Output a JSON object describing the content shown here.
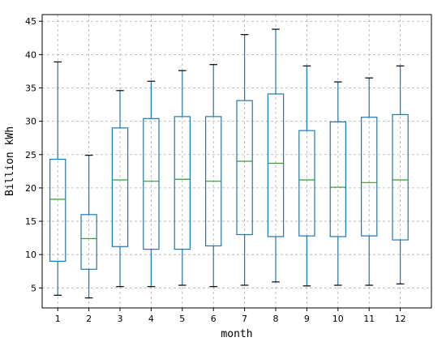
{
  "chart_data": {
    "type": "box",
    "title": "",
    "xlabel": "month",
    "ylabel": "Billion kWh",
    "grid": true,
    "grid_style": "dashed",
    "ylim": [
      2,
      46
    ],
    "yticks": [
      5,
      10,
      15,
      20,
      25,
      30,
      35,
      40,
      45
    ],
    "categories": [
      "1",
      "2",
      "3",
      "4",
      "5",
      "6",
      "7",
      "8",
      "9",
      "10",
      "11",
      "12"
    ],
    "boxes": [
      {
        "whisker_low": 3.9,
        "q1": 9.0,
        "median": 18.3,
        "q3": 24.3,
        "whisker_high": 38.9
      },
      {
        "whisker_low": 3.5,
        "q1": 7.8,
        "median": 12.4,
        "q3": 16.0,
        "whisker_high": 24.9
      },
      {
        "whisker_low": 5.2,
        "q1": 11.2,
        "median": 21.2,
        "q3": 29.0,
        "whisker_high": 34.6
      },
      {
        "whisker_low": 5.2,
        "q1": 10.8,
        "median": 21.0,
        "q3": 30.4,
        "whisker_high": 36.0
      },
      {
        "whisker_low": 5.4,
        "q1": 10.8,
        "median": 21.3,
        "q3": 30.7,
        "whisker_high": 37.6
      },
      {
        "whisker_low": 5.2,
        "q1": 11.3,
        "median": 21.0,
        "q3": 30.7,
        "whisker_high": 38.5
      },
      {
        "whisker_low": 5.4,
        "q1": 13.0,
        "median": 24.0,
        "q3": 33.1,
        "whisker_high": 43.0
      },
      {
        "whisker_low": 5.9,
        "q1": 12.7,
        "median": 23.7,
        "q3": 34.1,
        "whisker_high": 43.8
      },
      {
        "whisker_low": 5.3,
        "q1": 12.8,
        "median": 21.2,
        "q3": 28.6,
        "whisker_high": 38.3
      },
      {
        "whisker_low": 5.4,
        "q1": 12.7,
        "median": 20.1,
        "q3": 29.9,
        "whisker_high": 35.9
      },
      {
        "whisker_low": 5.4,
        "q1": 12.8,
        "median": 20.8,
        "q3": 30.6,
        "whisker_high": 36.5
      },
      {
        "whisker_low": 5.6,
        "q1": 12.2,
        "median": 21.2,
        "q3": 31.0,
        "whisker_high": 38.3
      }
    ],
    "colors": {
      "box": "#1f77b4",
      "median": "#2ca02c",
      "cap": "#000000",
      "grid": "#b0b0b0",
      "axis": "#000000"
    }
  }
}
